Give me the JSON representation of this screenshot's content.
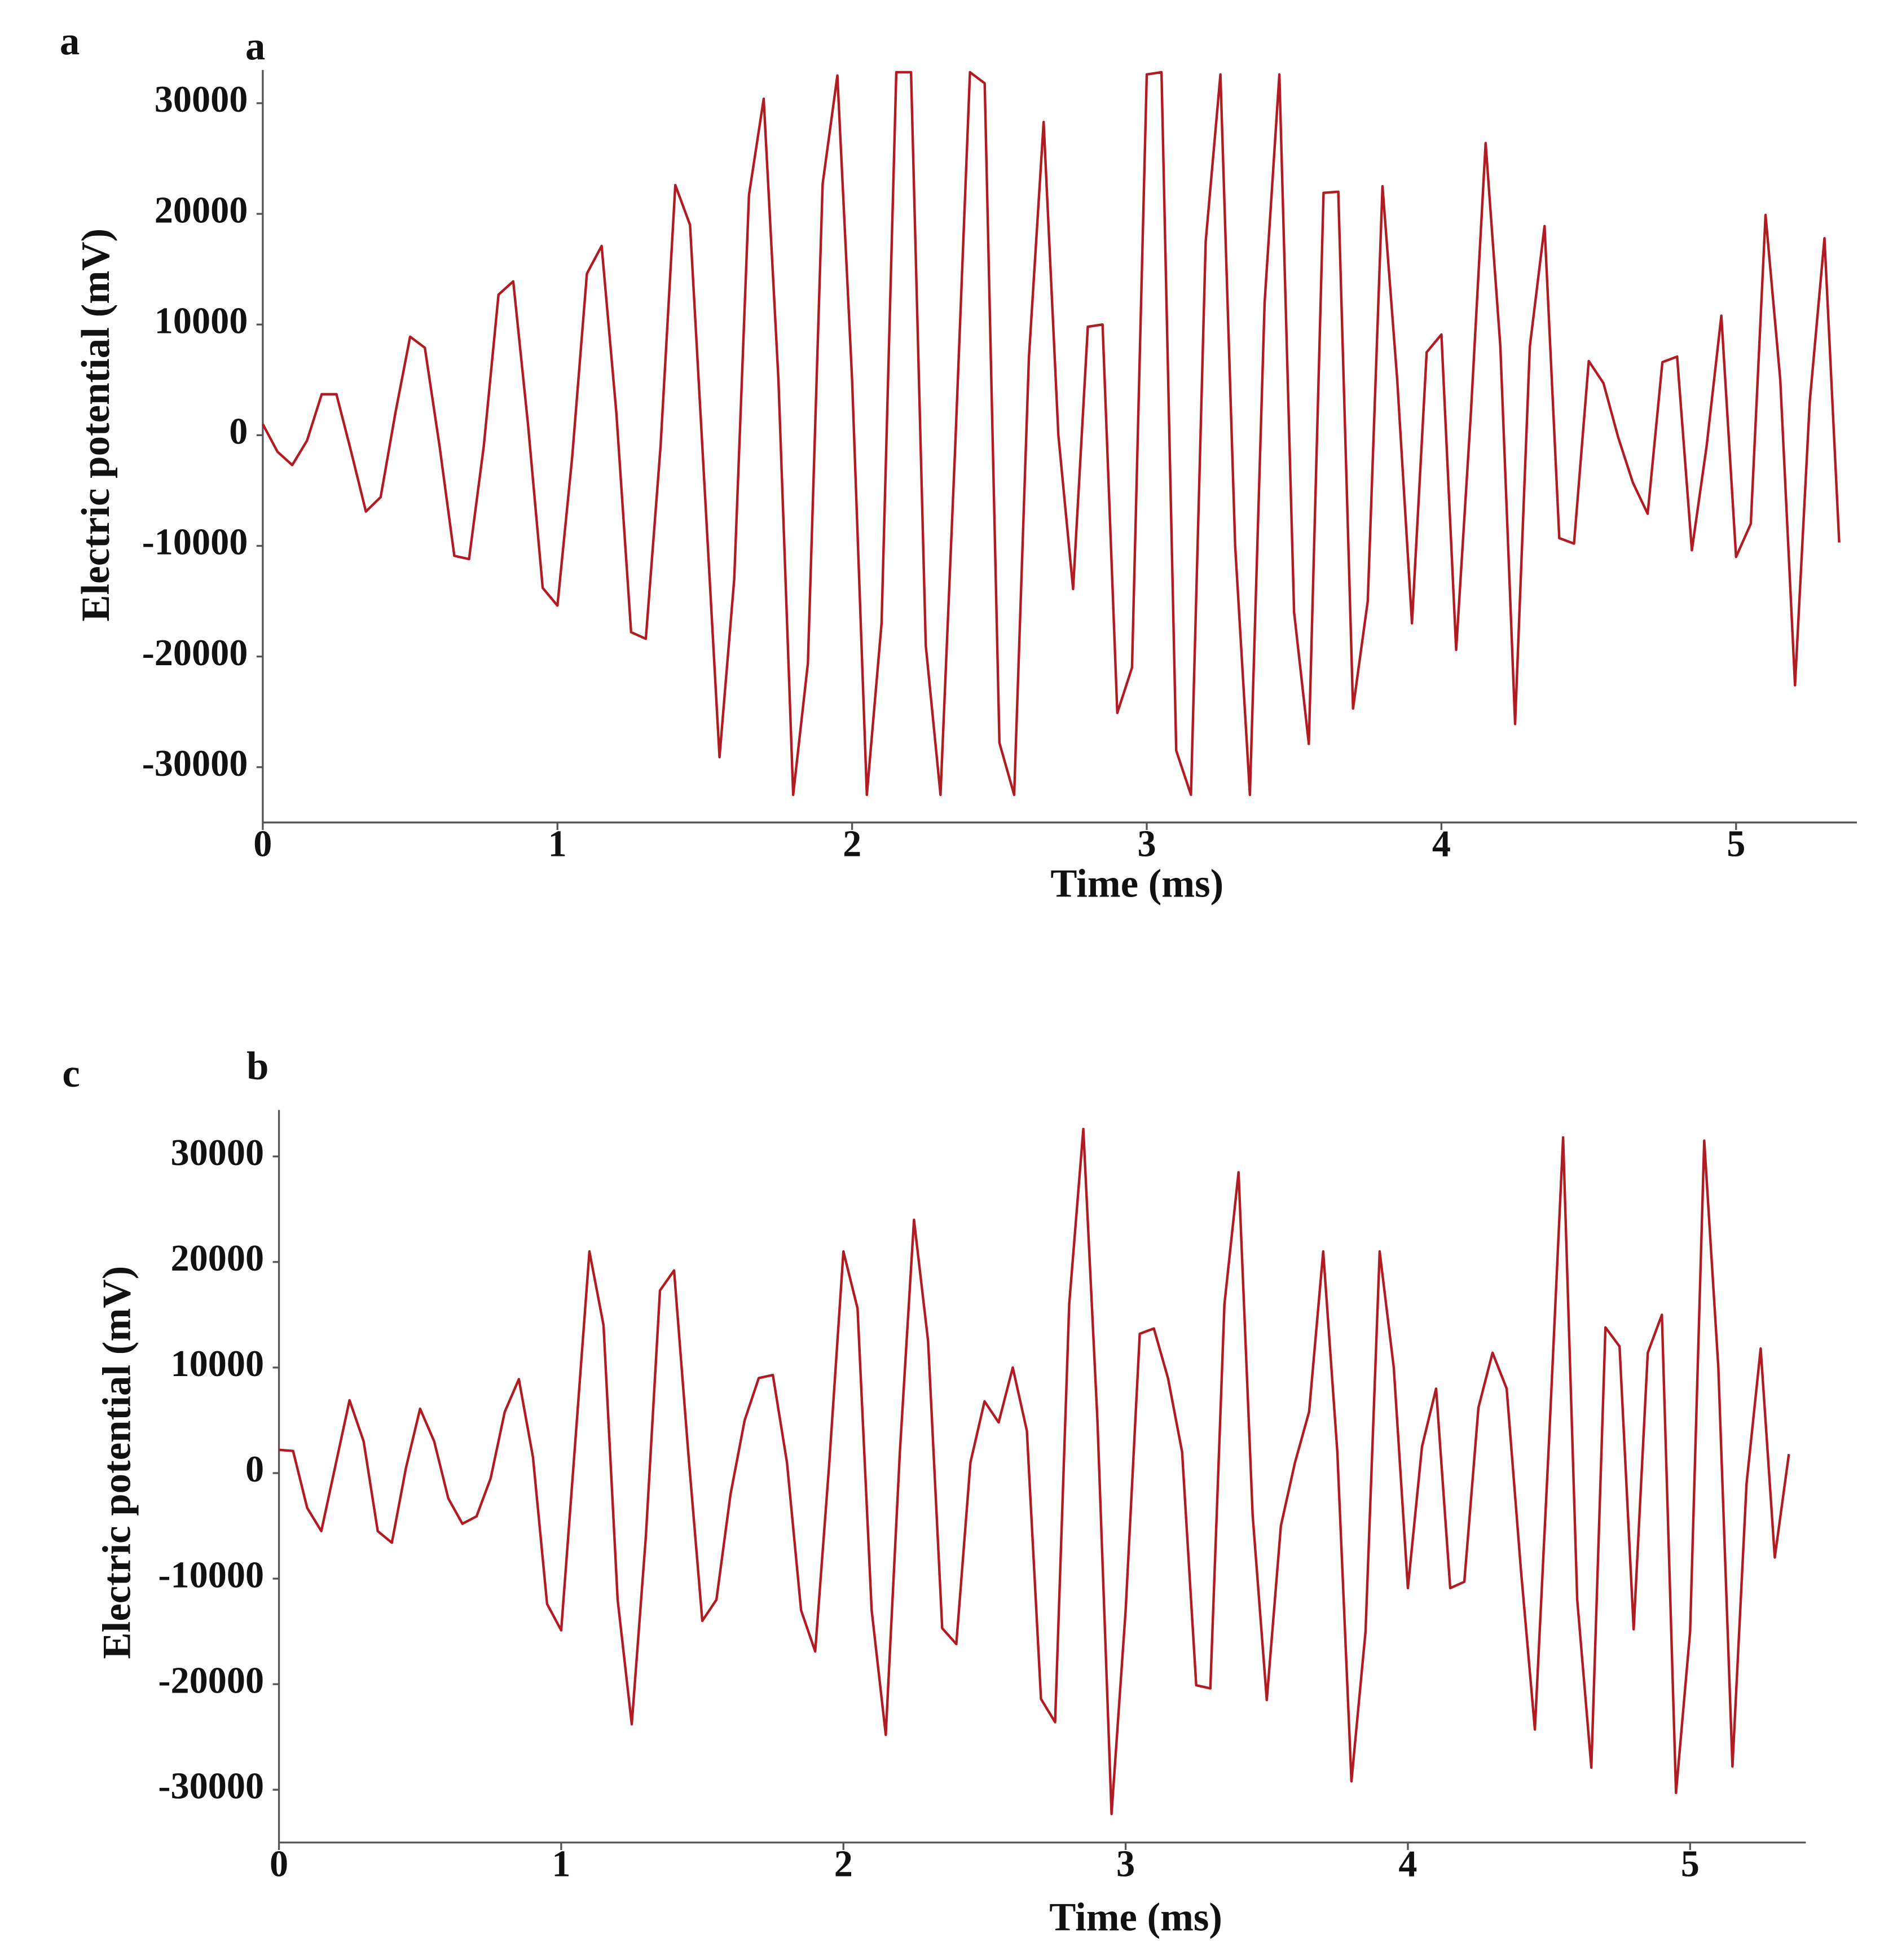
{
  "chart_data": [
    {
      "type": "line",
      "labels": [
        "a",
        "a"
      ],
      "x_label": "Time (ms)",
      "y_label": "Electric potential (mV)",
      "x": [
        0,
        0.05,
        0.1,
        0.15,
        0.2,
        0.25,
        0.3,
        0.35,
        0.4,
        0.45,
        0.5,
        0.55,
        0.6,
        0.65,
        0.7,
        0.75,
        0.8,
        0.85,
        0.9,
        0.95,
        1,
        1.05,
        1.1,
        1.15,
        1.2,
        1.25,
        1.3,
        1.35,
        1.4,
        1.45,
        1.5,
        1.55,
        1.6,
        1.65,
        1.7,
        1.75,
        1.8,
        1.85,
        1.9,
        1.95,
        2,
        2.05,
        2.1,
        2.15,
        2.2,
        2.25,
        2.3,
        2.35,
        2.4,
        2.45,
        2.5,
        2.55,
        2.6,
        2.65,
        2.7,
        2.75,
        2.8,
        2.85,
        2.9,
        2.95,
        3,
        3.05,
        3.1,
        3.15,
        3.2,
        3.25,
        3.3,
        3.35,
        3.4,
        3.45,
        3.5,
        3.55,
        3.6,
        3.65,
        3.7,
        3.75,
        3.8,
        3.85,
        3.9,
        3.95,
        4,
        4.05,
        4.1,
        4.15,
        4.2,
        4.25,
        4.3,
        4.35,
        4.4,
        4.45,
        4.5,
        4.55,
        4.6,
        4.65,
        4.7,
        4.75,
        4.8,
        4.85,
        4.9,
        4.95,
        5,
        5.05,
        5.1,
        5.15,
        5.2,
        5.25,
        5.3,
        5.35
      ],
      "series": [
        {
          "color": "#b01c22",
          "values": [
            1000,
            -1500,
            -2700,
            -500,
            3700,
            3700,
            -1500,
            -6900,
            -5600,
            2000,
            8900,
            7900,
            -1000,
            -10900,
            -11200,
            -1000,
            12700,
            13900,
            1000,
            -13800,
            -15400,
            -2000,
            14600,
            17100,
            2000,
            -17800,
            -18400,
            -1000,
            22600,
            19000,
            -5000,
            -29100,
            -13000,
            21700,
            30400,
            5000,
            -32500,
            -20600,
            22700,
            32500,
            5000,
            -32500,
            -17000,
            32800,
            32800,
            -19000,
            -32500,
            -1000,
            32800,
            31800,
            -27800,
            -32500,
            7000,
            28300,
            0,
            -13900,
            9800,
            10000,
            -25100,
            -21000,
            32600,
            32800,
            -28500,
            -32500,
            17500,
            32600,
            -10000,
            -32500,
            12000,
            32600,
            -16000,
            -27900,
            21900,
            22000,
            -24700,
            -15000,
            22500,
            5000,
            -17000,
            7500,
            9100,
            -19400,
            2000,
            26400,
            8000,
            -26100,
            8000,
            18900,
            -9300,
            -9800,
            6700,
            4700,
            -200,
            -4300,
            -7100,
            6600,
            7100,
            -10400,
            -1000,
            10800,
            -11000,
            -8000,
            19900,
            5000,
            -22600,
            3000,
            17800,
            -9700
          ]
        }
      ],
      "xlim": [
        0,
        5.41
      ],
      "xticks": [
        0,
        1,
        2,
        3,
        4,
        5
      ],
      "ylim": [
        -35000,
        33000
      ],
      "yticks": [
        -30000,
        -20000,
        -10000,
        0,
        10000,
        20000,
        30000
      ]
    },
    {
      "type": "line",
      "labels": [
        "c",
        "b"
      ],
      "x_label": "Time (ms)",
      "y_label": "Electric potential (mV)",
      "x": [
        0,
        0.05,
        0.1,
        0.15,
        0.2,
        0.25,
        0.3,
        0.35,
        0.4,
        0.45,
        0.5,
        0.55,
        0.6,
        0.65,
        0.7,
        0.75,
        0.8,
        0.85,
        0.9,
        0.95,
        1,
        1.05,
        1.1,
        1.15,
        1.2,
        1.25,
        1.3,
        1.35,
        1.4,
        1.45,
        1.5,
        1.55,
        1.6,
        1.65,
        1.7,
        1.75,
        1.8,
        1.85,
        1.9,
        1.95,
        2,
        2.05,
        2.1,
        2.15,
        2.2,
        2.25,
        2.3,
        2.35,
        2.4,
        2.45,
        2.5,
        2.55,
        2.6,
        2.65,
        2.7,
        2.75,
        2.8,
        2.85,
        2.9,
        2.95,
        3,
        3.05,
        3.1,
        3.15,
        3.2,
        3.25,
        3.3,
        3.35,
        3.4,
        3.45,
        3.5,
        3.55,
        3.6,
        3.65,
        3.7,
        3.75,
        3.8,
        3.85,
        3.9,
        3.95,
        4,
        4.05,
        4.1,
        4.15,
        4.2,
        4.25,
        4.3,
        4.35,
        4.4,
        4.45,
        4.5,
        4.55,
        4.6,
        4.65,
        4.7,
        4.75,
        4.8,
        4.85,
        4.9,
        4.95,
        5,
        5.05,
        5.1,
        5.15,
        5.2,
        5.25,
        5.3,
        5.35
      ],
      "series": [
        {
          "color": "#b01c22",
          "values": [
            2200,
            2100,
            -3300,
            -5500,
            700,
            6900,
            3000,
            -5500,
            -6600,
            500,
            6100,
            3000,
            -2400,
            -4800,
            -4100,
            -500,
            5800,
            8900,
            1500,
            -12400,
            -14900,
            3000,
            21000,
            14000,
            -12000,
            -23800,
            -6000,
            17300,
            19200,
            2000,
            -14000,
            -12000,
            -2000,
            5000,
            9000,
            9300,
            1000,
            -13000,
            -16900,
            1000,
            21000,
            15600,
            -13000,
            -24800,
            2000,
            24000,
            12500,
            -14700,
            -16200,
            1000,
            6800,
            4800,
            10000,
            4000,
            -21400,
            -23600,
            16000,
            32600,
            5000,
            -32300,
            -13000,
            13200,
            13700,
            9000,
            2000,
            -20100,
            -20400,
            16000,
            28500,
            -4000,
            -21500,
            -5000,
            1000,
            5800,
            21000,
            2000,
            -29200,
            -15000,
            21000,
            10000,
            -10900,
            2500,
            8000,
            -10900,
            -10300,
            6200,
            11400,
            8000,
            -9000,
            -24300,
            3000,
            31800,
            -12000,
            -27900,
            13800,
            12000,
            -14800,
            11400,
            15000,
            -30300,
            -15000,
            31500,
            10000,
            -27800,
            -1000,
            11800,
            -8000,
            1800
          ]
        }
      ],
      "xlim": [
        0,
        5.41
      ],
      "xticks": [
        0,
        1,
        2,
        3,
        4,
        5
      ],
      "ylim": [
        -35000,
        34400
      ],
      "yticks": [
        -30000,
        -20000,
        -10000,
        0,
        10000,
        20000,
        30000
      ]
    }
  ]
}
